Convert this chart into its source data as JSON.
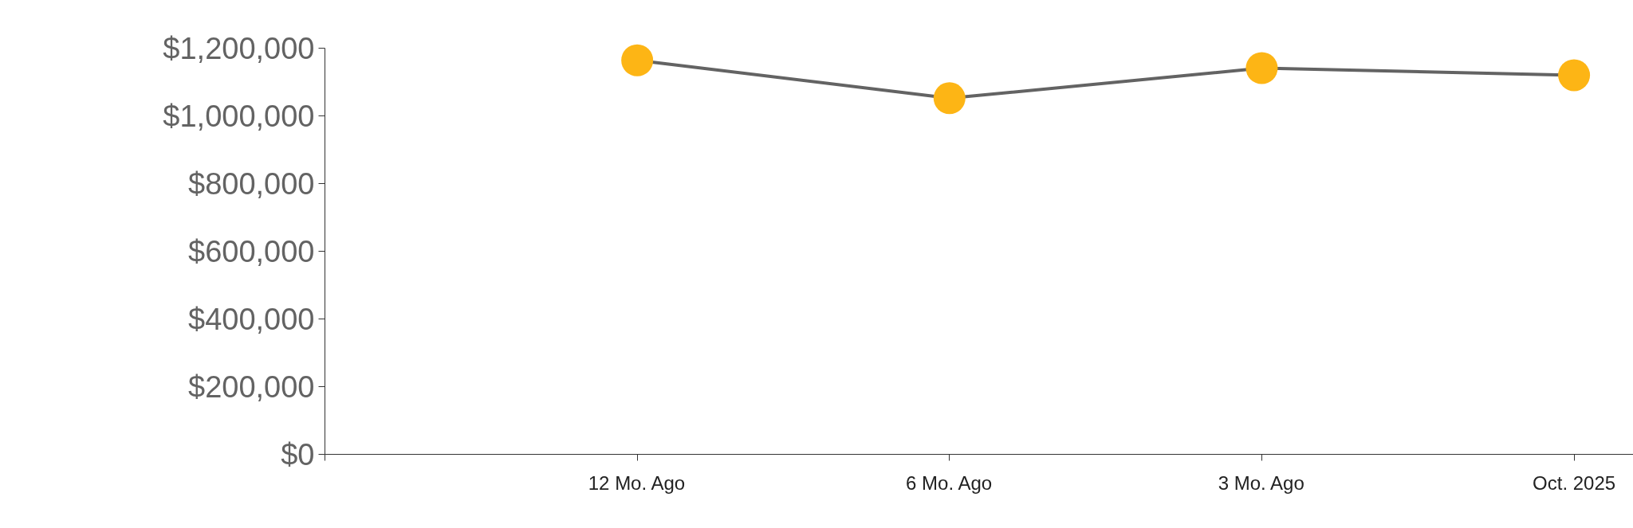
{
  "chart_data": {
    "type": "line",
    "categories": [
      "12 Mo. Ago",
      "6 Mo. Ago",
      "3 Mo. Ago",
      "Oct. 2025"
    ],
    "series": [
      {
        "color": "#636363",
        "colors": [
          "#fdb515",
          "#fdb515",
          "#fdb515",
          "#fdb515"
        ],
        "values": [
          1165000,
          1053000,
          1142000,
          1121000
        ]
      }
    ],
    "ylim": [
      0,
      1200000
    ],
    "yticks": [
      {
        "value": 0,
        "label": "$0"
      },
      {
        "value": 200000,
        "label": "$200,000"
      },
      {
        "value": 400000,
        "label": "$400,000"
      },
      {
        "value": 600000,
        "label": "$600,000"
      },
      {
        "value": 800000,
        "label": "$800,000"
      },
      {
        "value": 1000000,
        "label": "$1,000,000"
      },
      {
        "value": 1200000,
        "label": "$1,200,000"
      }
    ],
    "marker": "circle",
    "line_style": "solid"
  }
}
